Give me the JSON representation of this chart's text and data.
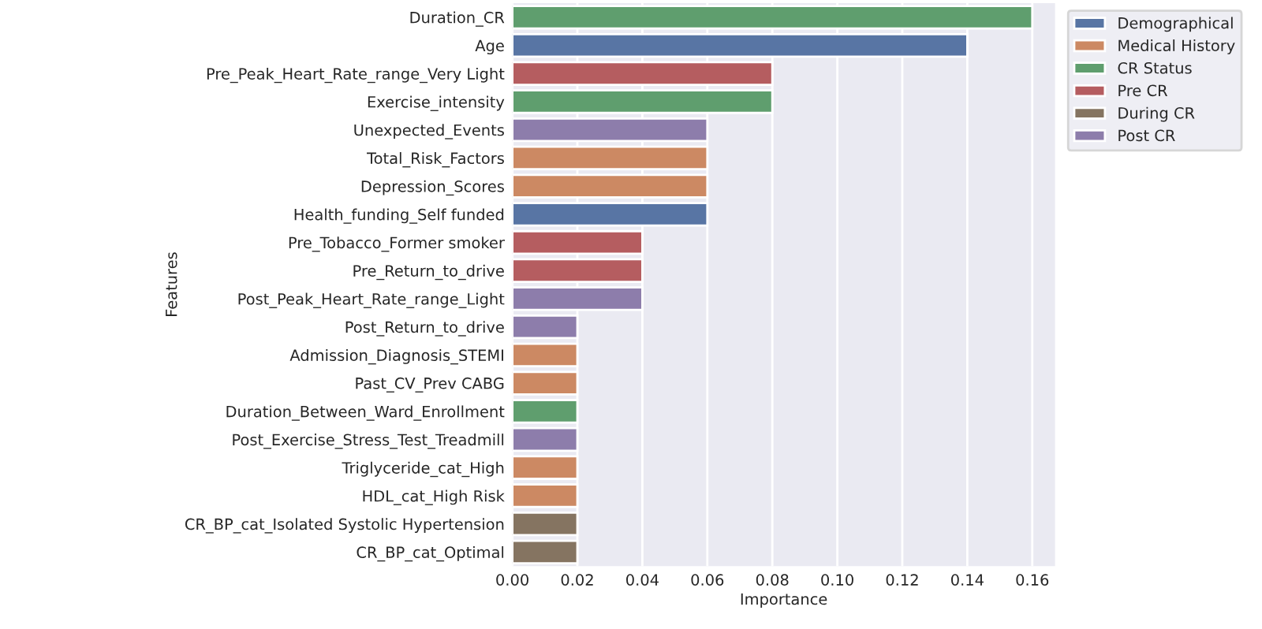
{
  "chart_data": {
    "type": "bar",
    "orientation": "horizontal",
    "xlabel": "Importance",
    "ylabel": "Features",
    "categories": [
      "Duration_CR",
      "Age",
      "Pre_Peak_Heart_Rate_range_Very Light",
      "Exercise_intensity",
      "Unexpected_Events",
      "Total_Risk_Factors",
      "Depression_Scores",
      "Health_funding_Self funded",
      "Pre_Tobacco_Former smoker",
      "Pre_Return_to_drive",
      "Post_Peak_Heart_Rate_range_Light",
      "Post_Return_to_drive",
      "Admission_Diagnosis_STEMI",
      "Past_CV_Prev CABG",
      "Duration_Between_Ward_Enrollment",
      "Post_Exercise_Stress_Test_Treadmill",
      "Triglyceride_cat_High",
      "HDL_cat_High Risk",
      "CR_BP_cat_Isolated Systolic Hypertension",
      "CR_BP_cat_Optimal"
    ],
    "series": [
      {
        "name": "Demographical",
        "color": "#5875a4",
        "values": [
          null,
          0.14,
          null,
          null,
          null,
          null,
          null,
          0.06,
          null,
          null,
          null,
          null,
          null,
          null,
          null,
          null,
          null,
          null,
          null,
          null
        ]
      },
      {
        "name": "Medical History",
        "color": "#cc8963",
        "values": [
          null,
          null,
          null,
          null,
          null,
          0.06,
          0.06,
          null,
          null,
          null,
          null,
          null,
          0.02,
          0.02,
          null,
          null,
          0.02,
          0.02,
          null,
          null
        ]
      },
      {
        "name": "CR Status",
        "color": "#5f9e6e",
        "values": [
          0.16,
          null,
          null,
          0.08,
          null,
          null,
          null,
          null,
          null,
          null,
          null,
          null,
          null,
          null,
          0.02,
          null,
          null,
          null,
          null,
          null
        ]
      },
      {
        "name": "Pre CR",
        "color": "#b55d60",
        "values": [
          null,
          null,
          0.08,
          null,
          null,
          null,
          null,
          null,
          0.04,
          0.04,
          null,
          null,
          null,
          null,
          null,
          null,
          null,
          null,
          null,
          null
        ]
      },
      {
        "name": "During CR",
        "color": "#857461",
        "values": [
          null,
          null,
          null,
          null,
          null,
          null,
          null,
          null,
          null,
          null,
          null,
          null,
          null,
          null,
          null,
          null,
          null,
          null,
          0.02,
          0.02
        ]
      },
      {
        "name": "Post CR",
        "color": "#8d7dab",
        "values": [
          null,
          null,
          null,
          null,
          0.06,
          null,
          null,
          null,
          null,
          null,
          0.04,
          0.02,
          null,
          null,
          null,
          0.02,
          null,
          null,
          null,
          null
        ]
      }
    ],
    "xlim": [
      0,
      0.167
    ],
    "xticks": [
      {
        "value": 0,
        "label": "0.00"
      },
      {
        "value": 0.02,
        "label": "0.02"
      },
      {
        "value": 0.04,
        "label": "0.04"
      },
      {
        "value": 0.06,
        "label": "0.06"
      },
      {
        "value": 0.08,
        "label": "0.08"
      },
      {
        "value": 0.1,
        "label": "0.10"
      },
      {
        "value": 0.12,
        "label": "0.12"
      },
      {
        "value": 0.14,
        "label": "0.14"
      },
      {
        "value": 0.16,
        "label": "0.16"
      }
    ],
    "grid": "x",
    "legend": "top right outside"
  }
}
